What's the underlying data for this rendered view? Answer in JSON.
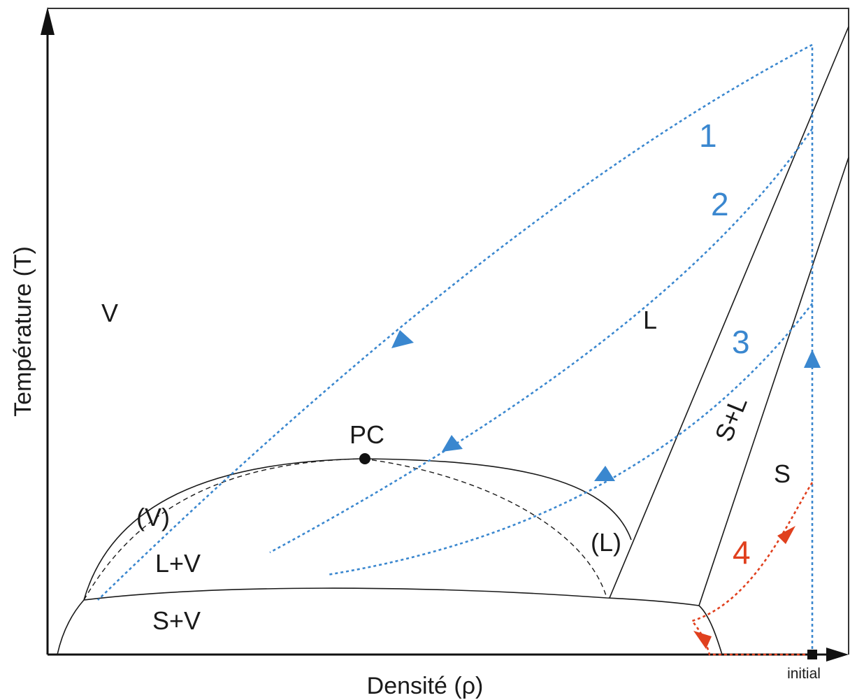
{
  "axes": {
    "x_label": "Densité (ρ)",
    "y_label": "Température (T)",
    "initial_label": "initial"
  },
  "regions": {
    "vapor": "V",
    "liquid": "L",
    "solid": "S",
    "solid_liquid": "S+L",
    "liquid_vapor": "L+V",
    "solid_vapor": "S+V",
    "vapor_spinodal": "(V)",
    "liquid_spinodal": "(L)",
    "critical_point": "PC"
  },
  "paths": [
    {
      "label": "1",
      "color": "#3a87cf"
    },
    {
      "label": "2",
      "color": "#3a87cf"
    },
    {
      "label": "3",
      "color": "#3a87cf"
    },
    {
      "label": "4",
      "color": "#e0401e"
    }
  ],
  "colors": {
    "blue_path": "#3a87cf",
    "red_path": "#e0401e",
    "phase_lines": "#1a1a1a"
  }
}
